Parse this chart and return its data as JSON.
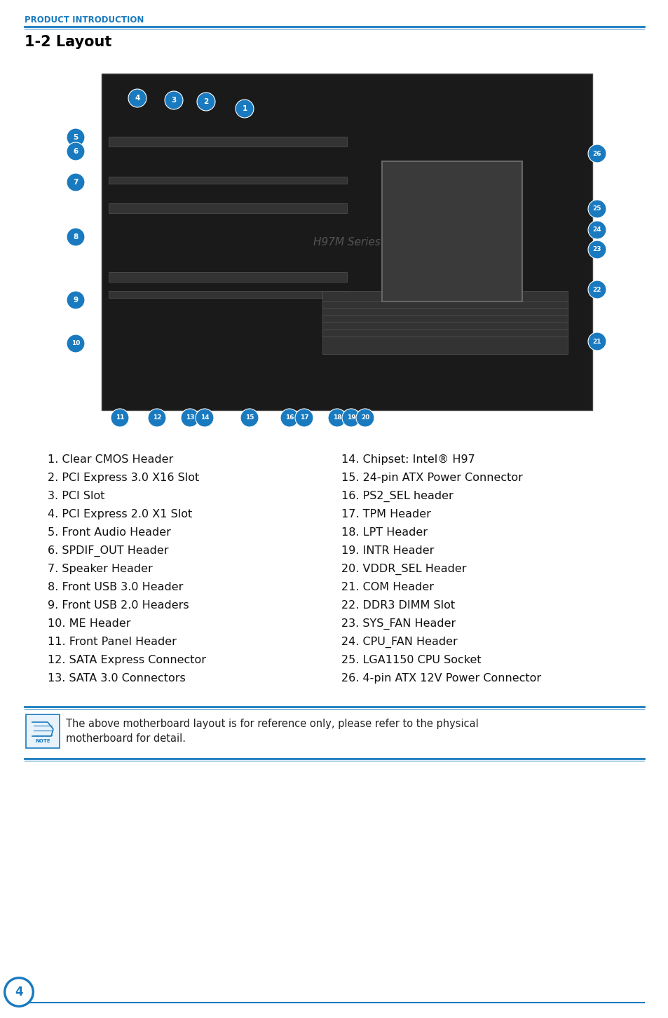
{
  "page_bg": "#ffffff",
  "header_text": "PRODUCT INTRODUCTION",
  "header_color": "#1a7abf",
  "header_line_color": "#1a7abf",
  "title": "1-2 Layout",
  "title_color": "#000000",
  "items_left": [
    "1. Clear CMOS Header",
    "2. PCI Express 3.0 X16 Slot",
    "3. PCI Slot",
    "4. PCI Express 2.0 X1 Slot",
    "5. Front Audio Header",
    "6. SPDIF_OUT Header",
    "7. Speaker Header",
    "8. Front USB 3.0 Header",
    "9. Front USB 2.0 Headers",
    "10. ME Header",
    "11. Front Panel Header",
    "12. SATA Express Connector",
    "13. SATA 3.0 Connectors"
  ],
  "items_right": [
    "14. Chipset: Intel® H97",
    "15. 24-pin ATX Power Connector",
    "16. PS2_SEL header",
    "17. TPM Header",
    "18. LPT Header",
    "19. INTR Header",
    "20. VDDR_SEL Header",
    "21. COM Header",
    "22. DDR3 DIMM Slot",
    "23. SYS_FAN Header",
    "24. CPU_FAN Header",
    "25. LGA1150 CPU Socket",
    "26. 4-pin ATX 12V Power Connector"
  ],
  "note_line1": "The above motherboard layout is for reference only, please refer to the physical",
  "note_line2": "motherboard for detail.",
  "note_color": "#222222",
  "page_number": "4",
  "page_number_color": "#ffffff",
  "page_number_bg": "#1a7abf",
  "text_color": "#111111",
  "list_fontsize": 11.5,
  "blue_color": "#1a7abf",
  "callouts": [
    [
      349,
      155,
      "1"
    ],
    [
      294,
      145,
      "2"
    ],
    [
      248,
      143,
      "3"
    ],
    [
      196,
      140,
      "4"
    ],
    [
      108,
      196,
      "5"
    ],
    [
      108,
      216,
      "6"
    ],
    [
      108,
      260,
      "7"
    ],
    [
      108,
      338,
      "8"
    ],
    [
      108,
      428,
      "9"
    ],
    [
      108,
      490,
      "10"
    ],
    [
      171,
      596,
      "11"
    ],
    [
      224,
      596,
      "12"
    ],
    [
      271,
      596,
      "13"
    ],
    [
      292,
      596,
      "14"
    ],
    [
      356,
      596,
      "15"
    ],
    [
      413,
      596,
      "16"
    ],
    [
      434,
      596,
      "17"
    ],
    [
      481,
      596,
      "18"
    ],
    [
      501,
      596,
      "19"
    ],
    [
      521,
      596,
      "20"
    ],
    [
      852,
      487,
      "21"
    ],
    [
      852,
      413,
      "22"
    ],
    [
      852,
      356,
      "23"
    ],
    [
      852,
      328,
      "24"
    ],
    [
      852,
      298,
      "25"
    ],
    [
      852,
      219,
      "26"
    ]
  ]
}
